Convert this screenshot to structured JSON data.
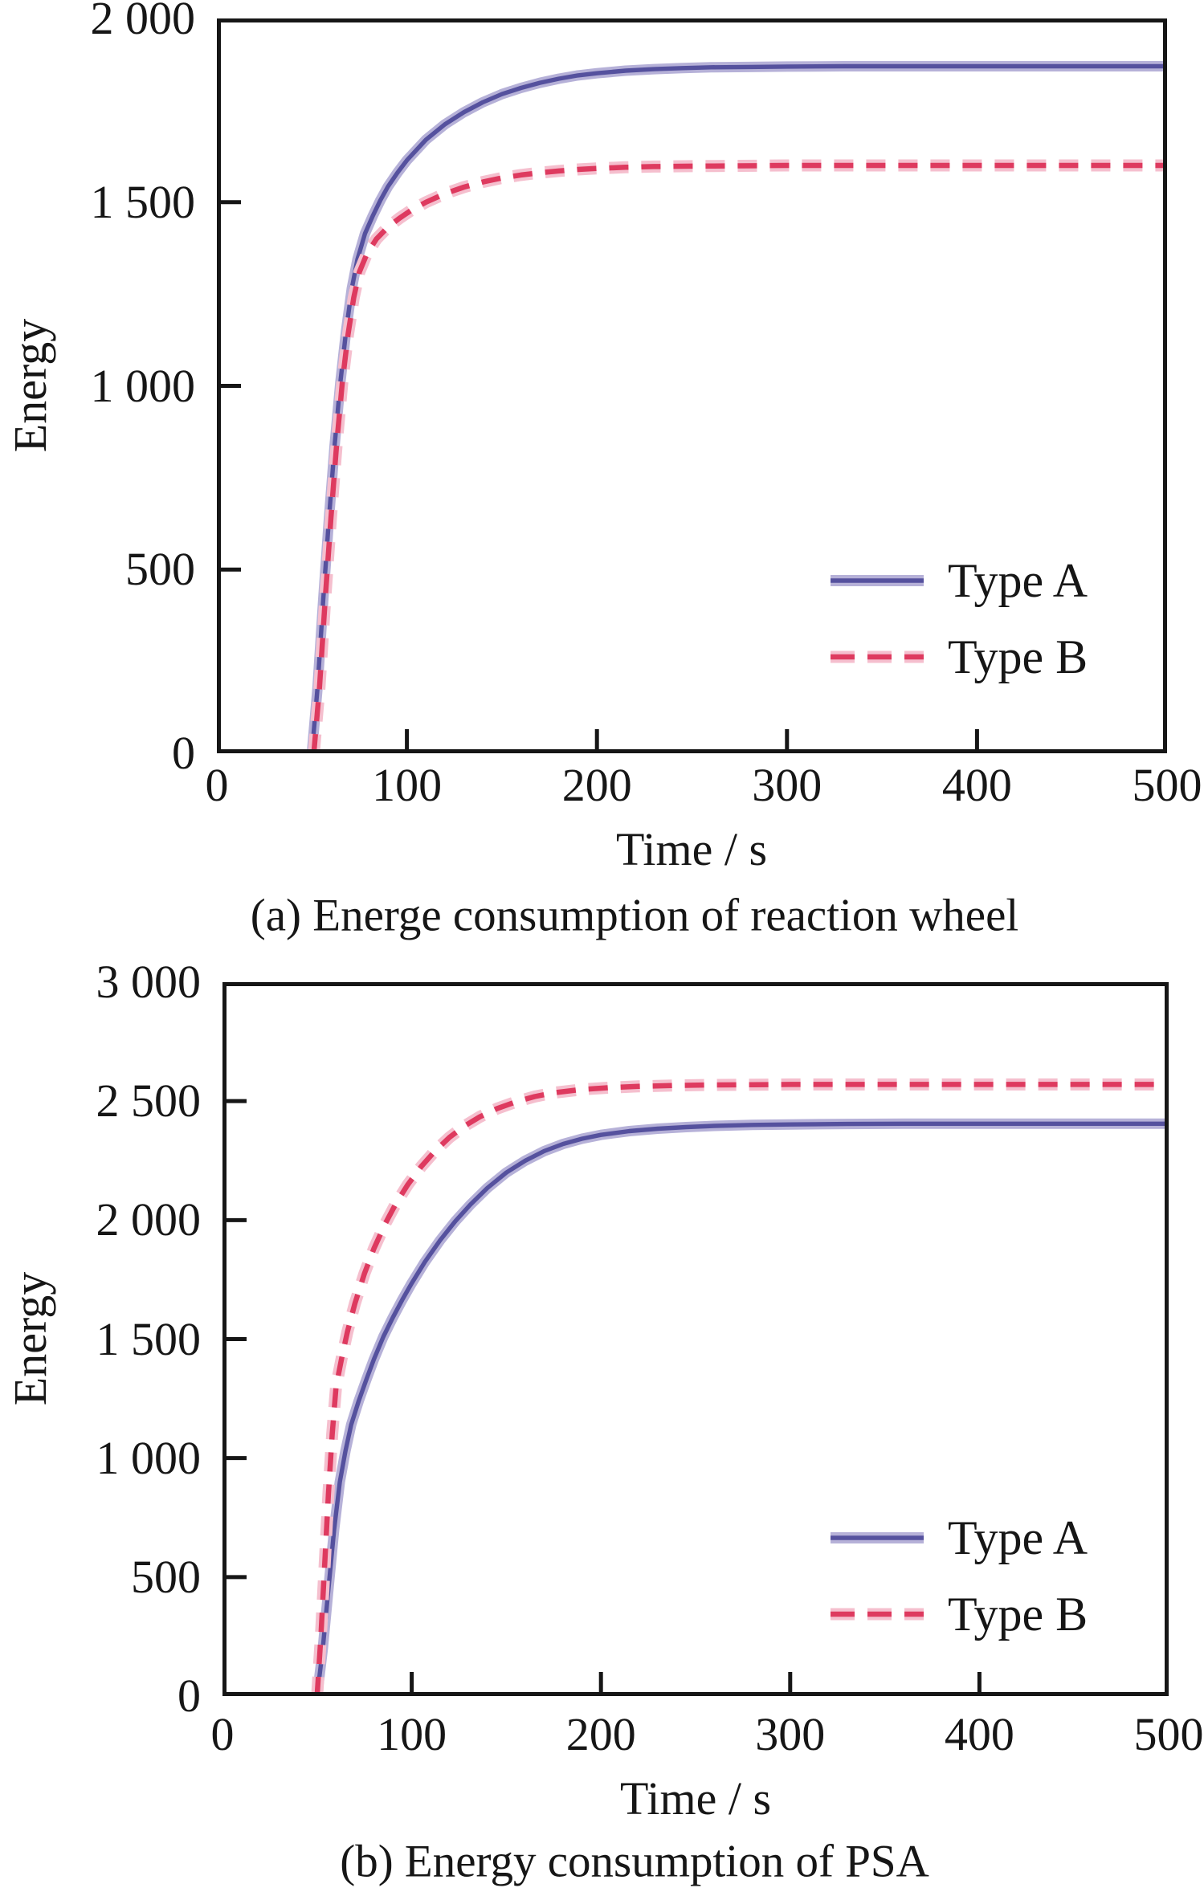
{
  "figure": {
    "background": "#ffffff",
    "frame_color": "#161616",
    "text_color": "#161616"
  },
  "chart_data": [
    {
      "id": "a",
      "type": "line",
      "caption": "(a) Energe consumption of reaction wheel",
      "xlabel": "Time / s",
      "ylabel": "Energy",
      "xlim": [
        0,
        500
      ],
      "ylim": [
        0,
        2000
      ],
      "grid": false,
      "legend_position": "inside lower right",
      "xticks": {
        "values": [
          0,
          100,
          200,
          300,
          400,
          500
        ],
        "labels": [
          "0",
          "100",
          "200",
          "300",
          "400",
          "500"
        ]
      },
      "yticks": {
        "values": [
          0,
          500,
          1000,
          1500,
          2000
        ],
        "labels": [
          "0",
          "500",
          "1 000",
          "1 500",
          "2 000"
        ]
      },
      "series": [
        {
          "name": "Type A",
          "style": "solid",
          "color": "#55519e",
          "halo": "#b6b1d8",
          "points": [
            [
              50,
              0
            ],
            [
              53,
              180
            ],
            [
              56,
              420
            ],
            [
              59,
              640
            ],
            [
              62,
              840
            ],
            [
              65,
              1010
            ],
            [
              68,
              1150
            ],
            [
              71,
              1265
            ],
            [
              74,
              1345
            ],
            [
              78,
              1415
            ],
            [
              82,
              1462
            ],
            [
              86,
              1505
            ],
            [
              90,
              1542
            ],
            [
              95,
              1580
            ],
            [
              100,
              1614
            ],
            [
              110,
              1670
            ],
            [
              120,
              1712
            ],
            [
              130,
              1745
            ],
            [
              140,
              1772
            ],
            [
              150,
              1794
            ],
            [
              160,
              1811
            ],
            [
              170,
              1825
            ],
            [
              180,
              1836
            ],
            [
              190,
              1845
            ],
            [
              200,
              1851
            ],
            [
              215,
              1858
            ],
            [
              230,
              1862
            ],
            [
              245,
              1865
            ],
            [
              260,
              1867
            ],
            [
              280,
              1868
            ],
            [
              300,
              1869
            ],
            [
              330,
              1870
            ],
            [
              360,
              1870
            ],
            [
              400,
              1870
            ],
            [
              450,
              1870
            ],
            [
              500,
              1870
            ]
          ]
        },
        {
          "name": "Type B",
          "style": "dashed",
          "color": "#de3a5f",
          "halo": "#f5bfce",
          "points": [
            [
              51,
              0
            ],
            [
              54,
              180
            ],
            [
              57,
              420
            ],
            [
              60,
              640
            ],
            [
              63,
              840
            ],
            [
              66,
              1010
            ],
            [
              69,
              1140
            ],
            [
              72,
              1240
            ],
            [
              75,
              1310
            ],
            [
              79,
              1360
            ],
            [
              84,
              1400
            ],
            [
              90,
              1432
            ],
            [
              96,
              1456
            ],
            [
              102,
              1477
            ],
            [
              110,
              1500
            ],
            [
              120,
              1523
            ],
            [
              130,
              1541
            ],
            [
              140,
              1555
            ],
            [
              150,
              1566
            ],
            [
              160,
              1574
            ],
            [
              170,
              1580
            ],
            [
              180,
              1585
            ],
            [
              190,
              1589
            ],
            [
              200,
              1592
            ],
            [
              215,
              1595
            ],
            [
              230,
              1597
            ],
            [
              250,
              1598
            ],
            [
              275,
              1599
            ],
            [
              300,
              1600
            ],
            [
              350,
              1600
            ],
            [
              400,
              1600
            ],
            [
              450,
              1600
            ],
            [
              500,
              1600
            ]
          ]
        }
      ]
    },
    {
      "id": "b",
      "type": "line",
      "caption": "(b) Energy consumption of PSA",
      "xlabel": "Time / s",
      "ylabel": "Energy",
      "xlim": [
        0,
        500
      ],
      "ylim": [
        0,
        3000
      ],
      "grid": false,
      "legend_position": "inside lower right",
      "xticks": {
        "values": [
          0,
          100,
          200,
          300,
          400,
          500
        ],
        "labels": [
          "0",
          "100",
          "200",
          "300",
          "400",
          "500"
        ]
      },
      "yticks": {
        "values": [
          0,
          500,
          1000,
          1500,
          2000,
          2500,
          3000
        ],
        "labels": [
          "0",
          "500",
          "1 000",
          "1 500",
          "2 000",
          "2 500",
          "3 000"
        ]
      },
      "series": [
        {
          "name": "Type A",
          "style": "solid",
          "color": "#55519e",
          "halo": "#b6b1d8",
          "points": [
            [
              50,
              0
            ],
            [
              53,
              200
            ],
            [
              56,
              450
            ],
            [
              59,
              700
            ],
            [
              62,
              900
            ],
            [
              65,
              1030
            ],
            [
              68,
              1140
            ],
            [
              72,
              1240
            ],
            [
              76,
              1330
            ],
            [
              80,
              1415
            ],
            [
              85,
              1510
            ],
            [
              90,
              1590
            ],
            [
              95,
              1665
            ],
            [
              100,
              1735
            ],
            [
              107,
              1825
            ],
            [
              115,
              1915
            ],
            [
              123,
              1995
            ],
            [
              131,
              2065
            ],
            [
              140,
              2135
            ],
            [
              150,
              2200
            ],
            [
              160,
              2250
            ],
            [
              170,
              2290
            ],
            [
              180,
              2320
            ],
            [
              190,
              2342
            ],
            [
              200,
              2358
            ],
            [
              215,
              2374
            ],
            [
              230,
              2384
            ],
            [
              245,
              2391
            ],
            [
              260,
              2396
            ],
            [
              280,
              2400
            ],
            [
              300,
              2402
            ],
            [
              330,
              2404
            ],
            [
              360,
              2405
            ],
            [
              400,
              2405
            ],
            [
              450,
              2405
            ],
            [
              500,
              2405
            ]
          ]
        },
        {
          "name": "Type B",
          "style": "dashed",
          "color": "#de3a5f",
          "halo": "#f5bfce",
          "points": [
            [
              50,
              0
            ],
            [
              52,
              250
            ],
            [
              54,
              550
            ],
            [
              56,
              850
            ],
            [
              58,
              1100
            ],
            [
              60,
              1300
            ],
            [
              63,
              1420
            ],
            [
              66,
              1530
            ],
            [
              70,
              1650
            ],
            [
              75,
              1775
            ],
            [
              80,
              1880
            ],
            [
              86,
              1985
            ],
            [
              92,
              2075
            ],
            [
              98,
              2150
            ],
            [
              105,
              2225
            ],
            [
              112,
              2288
            ],
            [
              120,
              2348
            ],
            [
              128,
              2396
            ],
            [
              136,
              2434
            ],
            [
              145,
              2468
            ],
            [
              155,
              2497
            ],
            [
              165,
              2519
            ],
            [
              175,
              2535
            ],
            [
              190,
              2549
            ],
            [
              205,
              2557
            ],
            [
              220,
              2562
            ],
            [
              240,
              2566
            ],
            [
              260,
              2568
            ],
            [
              280,
              2569
            ],
            [
              300,
              2570
            ],
            [
              340,
              2570
            ],
            [
              380,
              2570
            ],
            [
              430,
              2570
            ],
            [
              500,
              2570
            ]
          ]
        }
      ]
    }
  ]
}
